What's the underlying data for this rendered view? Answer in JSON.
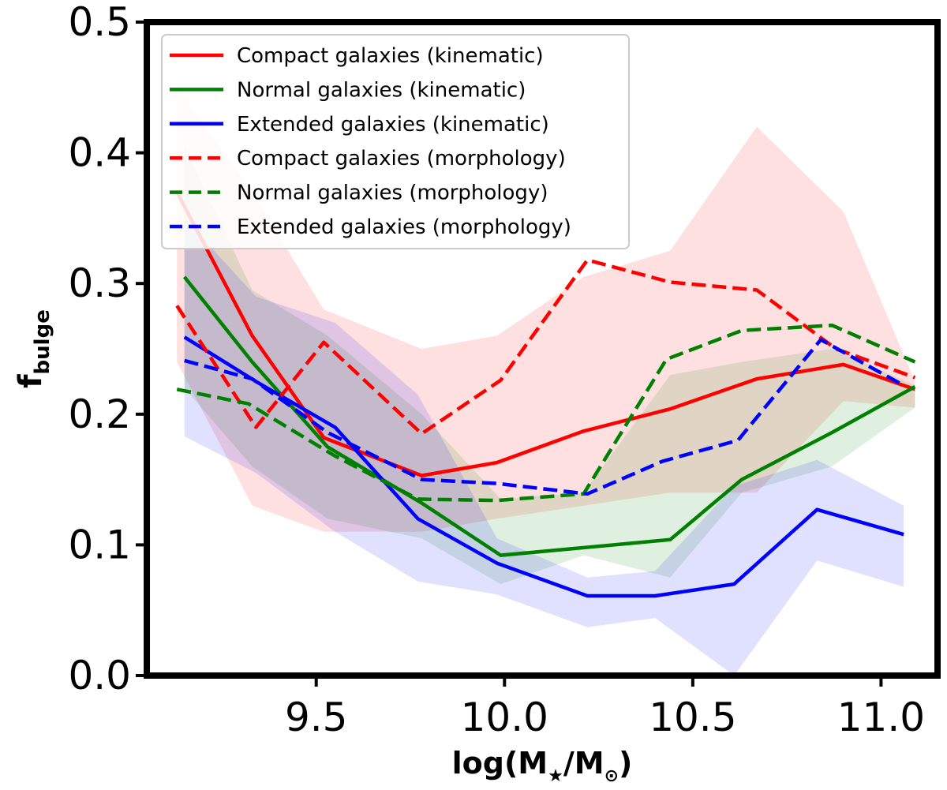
{
  "chart_data": {
    "type": "line",
    "title": "",
    "xlabel": {
      "prefix": "log(M",
      "star": "★",
      "mid": "/M",
      "sun": "⊙",
      "suffix": ")"
    },
    "ylabel": {
      "main": "f",
      "sub": "bulge"
    },
    "xlim": [
      9.05,
      11.15
    ],
    "ylim": [
      0.0,
      0.5
    ],
    "xticks": [
      9.5,
      10.0,
      10.5,
      11.0
    ],
    "xtick_labels": [
      "9.5",
      "10.0",
      "10.5",
      "11.0"
    ],
    "yticks": [
      0.0,
      0.1,
      0.2,
      0.3,
      0.4,
      0.5
    ],
    "ytick_labels": [
      "0.0",
      "0.1",
      "0.2",
      "0.3",
      "0.4",
      "0.5"
    ],
    "grid": false,
    "legend_position": "upper-left",
    "series": [
      {
        "name": "Compact galaxies (kinematic)",
        "color": "#ff0000",
        "style": "solid",
        "x": [
          9.13,
          9.33,
          9.52,
          9.78,
          9.98,
          10.21,
          10.44,
          10.67,
          10.9,
          11.09
        ],
        "y": [
          0.37,
          0.26,
          0.182,
          0.153,
          0.163,
          0.187,
          0.204,
          0.227,
          0.238,
          0.219
        ],
        "band": {
          "x": [
            9.13,
            9.33,
            9.52,
            9.78,
            9.98,
            10.21,
            10.44,
            10.67,
            10.9,
            11.09
          ],
          "lo": [
            0.24,
            0.13,
            0.11,
            0.11,
            0.12,
            0.13,
            0.14,
            0.14,
            0.21,
            0.205
          ],
          "hi": [
            0.45,
            0.37,
            0.28,
            0.25,
            0.26,
            0.305,
            0.325,
            0.42,
            0.355,
            0.225
          ]
        }
      },
      {
        "name": "Normal galaxies (kinematic)",
        "color": "#008000",
        "style": "solid",
        "x": [
          9.15,
          9.33,
          9.53,
          9.78,
          9.99,
          10.44,
          10.63,
          10.87,
          11.09
        ],
        "y": [
          0.305,
          0.24,
          0.175,
          0.132,
          0.092,
          0.104,
          0.15,
          0.186,
          0.221
        ],
        "band": {
          "x": [
            9.15,
            9.33,
            9.53,
            9.78,
            9.99,
            10.21,
            10.44,
            10.63,
            10.87,
            11.09
          ],
          "lo": [
            0.22,
            0.16,
            0.12,
            0.105,
            0.07,
            0.092,
            0.075,
            0.14,
            0.16,
            0.205
          ],
          "hi": [
            0.405,
            0.295,
            0.26,
            0.2,
            0.135,
            0.14,
            0.23,
            0.24,
            0.25,
            0.222
          ]
        }
      },
      {
        "name": "Extended galaxies (kinematic)",
        "color": "#0000ff",
        "style": "solid",
        "x": [
          9.15,
          9.34,
          9.55,
          9.77,
          9.98,
          10.22,
          10.4,
          10.61,
          10.83,
          11.06
        ],
        "y": [
          0.259,
          0.225,
          0.19,
          0.12,
          0.086,
          0.061,
          0.061,
          0.07,
          0.127,
          0.108
        ],
        "band": {
          "x": [
            9.15,
            9.34,
            9.55,
            9.77,
            9.98,
            10.22,
            10.4,
            10.61,
            10.83,
            11.06
          ],
          "lo": [
            0.183,
            0.155,
            0.11,
            0.072,
            0.062,
            0.037,
            0.044,
            0.0,
            0.088,
            0.068
          ],
          "hi": [
            0.35,
            0.29,
            0.27,
            0.215,
            0.105,
            0.075,
            0.08,
            0.145,
            0.165,
            0.13
          ]
        }
      },
      {
        "name": "Compact galaxies (morphology)",
        "color": "#ff0000",
        "style": "dashed",
        "x": [
          9.13,
          9.34,
          9.52,
          9.78,
          9.99,
          10.22,
          10.44,
          10.67,
          10.88,
          11.09
        ],
        "y": [
          0.283,
          0.19,
          0.255,
          0.185,
          0.226,
          0.318,
          0.301,
          0.295,
          0.25,
          0.228
        ]
      },
      {
        "name": "Normal galaxies (morphology)",
        "color": "#008000",
        "style": "dashed",
        "x": [
          9.13,
          9.32,
          9.55,
          9.77,
          9.98,
          10.21,
          10.43,
          10.63,
          10.87,
          11.09
        ],
        "y": [
          0.219,
          0.208,
          0.168,
          0.135,
          0.134,
          0.139,
          0.242,
          0.264,
          0.268,
          0.24
        ]
      },
      {
        "name": "Extended galaxies (morphology)",
        "color": "#0000ff",
        "style": "dashed",
        "x": [
          9.15,
          9.33,
          9.53,
          9.78,
          9.98,
          10.22,
          10.42,
          10.62,
          10.84,
          11.06
        ],
        "y": [
          0.241,
          0.227,
          0.186,
          0.15,
          0.147,
          0.139,
          0.164,
          0.18,
          0.257,
          0.222
        ]
      }
    ]
  }
}
